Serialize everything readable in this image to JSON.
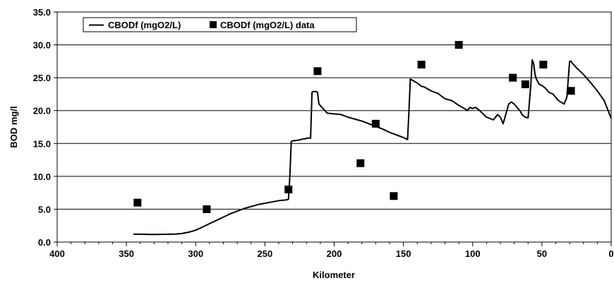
{
  "chart_data": {
    "type": "line",
    "xlabel": "Kilometer",
    "ylabel": "BOD mg/l",
    "xlim": [
      400,
      0
    ],
    "ylim": [
      0,
      35
    ],
    "x_reversed": true,
    "grid": true,
    "legend_position": "top-left",
    "x_ticks": [
      "400",
      "350",
      "300",
      "250",
      "200",
      "150",
      "100",
      "50",
      "0"
    ],
    "y_ticks": [
      "0.0",
      "5.0",
      "10.0",
      "15.0",
      "20.0",
      "25.0",
      "30.0",
      "35.0"
    ],
    "series": [
      {
        "name": "CBODf (mgO2/L)",
        "type": "line",
        "color": "#000000",
        "x": [
          345,
          330,
          315,
          310,
          305,
          300,
          295,
          290,
          285,
          280,
          275,
          270,
          265,
          260,
          255,
          250,
          245,
          240,
          235,
          233,
          232,
          231,
          230,
          226,
          222,
          221,
          220,
          217,
          216,
          215,
          213,
          212,
          211,
          205,
          200,
          195,
          190,
          185,
          180,
          175,
          170,
          165,
          160,
          155,
          150,
          147,
          146,
          145,
          140,
          137,
          135,
          130,
          125,
          120,
          115,
          110,
          105,
          104,
          102,
          100,
          98,
          95,
          90,
          85,
          82,
          80,
          78,
          76,
          74,
          72,
          70,
          68,
          66,
          64,
          62,
          60,
          58,
          57,
          56,
          55,
          54,
          52,
          50,
          48,
          45,
          42,
          38,
          34,
          32,
          30,
          29,
          28,
          25,
          20,
          15,
          10,
          5,
          0
        ],
        "y": [
          1.2,
          1.15,
          1.2,
          1.3,
          1.5,
          1.8,
          2.3,
          2.8,
          3.3,
          3.8,
          4.3,
          4.7,
          5.1,
          5.4,
          5.7,
          5.9,
          6.1,
          6.3,
          6.4,
          6.5,
          10.0,
          15.3,
          15.4,
          15.5,
          15.7,
          15.7,
          15.8,
          15.8,
          22.8,
          22.9,
          22.9,
          22.8,
          21.0,
          19.6,
          19.5,
          19.4,
          19.0,
          18.7,
          18.4,
          18.0,
          17.6,
          17.2,
          16.7,
          16.3,
          15.9,
          15.6,
          20.0,
          24.8,
          24.2,
          23.7,
          23.6,
          23.0,
          22.6,
          21.8,
          21.5,
          20.8,
          20.2,
          20.0,
          20.5,
          20.3,
          20.5,
          20.0,
          19.0,
          18.6,
          19.4,
          19.0,
          18.0,
          19.5,
          21.0,
          21.3,
          21.0,
          20.5,
          20.0,
          19.3,
          19.0,
          18.9,
          24.0,
          27.7,
          27.2,
          25.5,
          24.8,
          24.0,
          23.8,
          23.5,
          22.8,
          22.5,
          21.5,
          21.0,
          22.0,
          27.5,
          27.5,
          27.2,
          26.5,
          25.5,
          24.3,
          23.0,
          21.5,
          18.8
        ]
      },
      {
        "name": "CBODf (mgO2/L) data",
        "type": "scatter",
        "marker": "square",
        "color": "#000000",
        "x": [
          342,
          292,
          233,
          212,
          181,
          170,
          157,
          137,
          110,
          71,
          62,
          49,
          29
        ],
        "y": [
          6,
          5,
          8,
          26,
          12,
          18,
          7,
          27,
          30,
          25,
          24,
          27,
          23
        ]
      }
    ]
  }
}
